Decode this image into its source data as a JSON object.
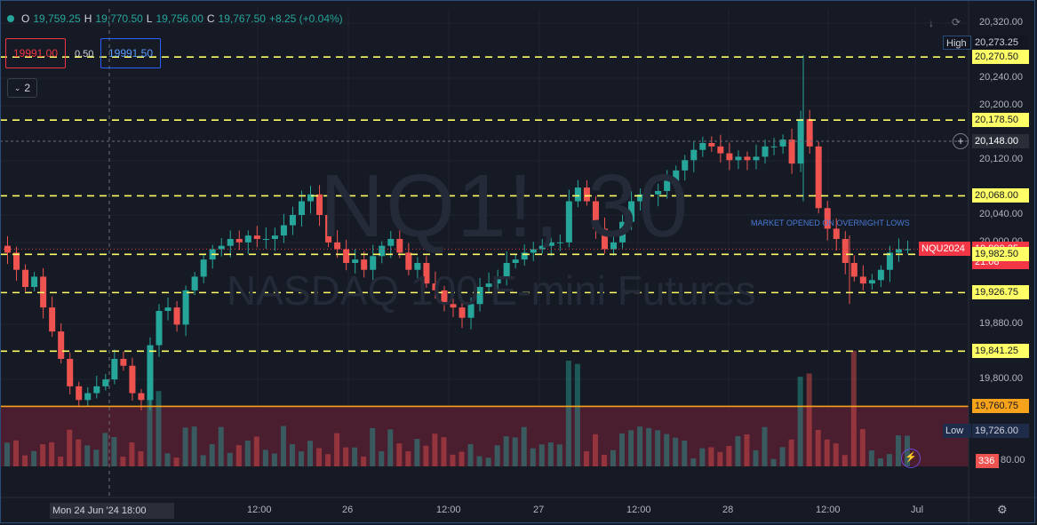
{
  "toolbar": {
    "ohlc": {
      "o_label": "O",
      "o": "19,759.25",
      "h_label": "H",
      "h": "19,770.50",
      "l_label": "L",
      "l": "19,756.00",
      "c_label": "C",
      "c": "19,767.50",
      "change": "+8.25 (+0.04%)"
    },
    "sell_price": "19991.00",
    "spread": "0.50",
    "buy_price": "19991.50",
    "indicators_count": "2"
  },
  "watermark": {
    "symbol": "NQ1!, 30",
    "name": "NASDAQ 100 E-mini Futures"
  },
  "colors": {
    "up": "#26a69a",
    "down": "#ef5350",
    "level": "#ffff66",
    "orange": "#f7a21b",
    "zone": "#5c1f33"
  },
  "chart_data": {
    "type": "candlestick",
    "y_ticks": [
      "20,320.00",
      "20,240.00",
      "20,200.00",
      "20,120.00",
      "20,040.00",
      "20,000.00",
      "19,880.00",
      "19,800.00"
    ],
    "y_range": [
      19700,
      20330
    ],
    "x_ticks": [
      "12:00",
      "26",
      "12:00",
      "27",
      "12:00",
      "28",
      "12:00",
      "Jul"
    ],
    "crosshair_x_label": "Mon 24 Jun '24   18:00",
    "horizontal_levels": [
      20270.5,
      20178.5,
      20068.0,
      19982.5,
      19926.75,
      19841.25
    ],
    "level_labels": [
      "20,270.50",
      "20,178.50",
      "20,068.00",
      "19,982.50",
      "19,926.75",
      "19,841.25"
    ],
    "orange_level": 19760.75,
    "orange_label": "19,760.75",
    "high": {
      "label": "High",
      "value": "20,273.25"
    },
    "low": {
      "label": "Low",
      "value": "19,726.00"
    },
    "crosshair_price": "20,148.00",
    "last_price": {
      "symbol": "NQU2024",
      "value": "19,990.25",
      "countdown": "21:08"
    },
    "volume_label": "336",
    "volume_axis_partial": "80.00",
    "annotation": "MARKET OPENED ON OVERNIGHT LOWS",
    "path": [
      19985,
      19960,
      19935,
      19950,
      19905,
      19870,
      19830,
      19790,
      19770,
      19780,
      19790,
      19800,
      19830,
      19820,
      19780,
      19770,
      19850,
      19900,
      19905,
      19880,
      19930,
      19950,
      19975,
      19990,
      19995,
      20005,
      20000,
      20010,
      20005,
      20005,
      20010,
      20025,
      20040,
      20060,
      20070,
      20040,
      20000,
      19990,
      19970,
      19975,
      19960,
      19980,
      19995,
      20005,
      19985,
      19960,
      19970,
      19940,
      19930,
      19910,
      19905,
      19890,
      19910,
      19935,
      19940,
      19950,
      19970,
      19975,
      19985,
      19990,
      19995,
      20000,
      20000,
      20060,
      20080,
      20060,
      20020,
      19990,
      20000,
      20030,
      20060,
      20070,
      20070,
      20075,
      20090,
      20105,
      20120,
      20135,
      20145,
      20140,
      20130,
      20120,
      20125,
      20120,
      20125,
      20140,
      20140,
      20150,
      20115,
      20180,
      20140,
      20050,
      20020,
      20005,
      19970,
      19950,
      19940,
      19945,
      19960,
      19985,
      19990,
      19990
    ]
  }
}
